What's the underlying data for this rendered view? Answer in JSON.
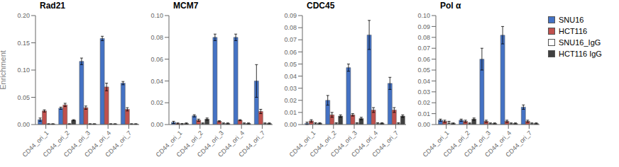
{
  "chart_data": [
    {
      "type": "bar",
      "title": "Rad21",
      "ylabel": "Enrichment",
      "grid": false,
      "categories": [
        "CD44_ori_1",
        "CD44_ori_2",
        "CD44_ori_3",
        "CD44_ori_4",
        "CD44_ori_7"
      ],
      "ylim": [
        0,
        0.2
      ],
      "yticks": [
        {
          "value": 0,
          "label": "0.00"
        },
        0.05,
        {
          "value": 0.1,
          "label": "0.10"
        },
        0.15,
        {
          "value": 0.2,
          "label": "0.20"
        }
      ],
      "series": [
        {
          "name": "SNU16",
          "color": "#4472C4",
          "values": [
            0.009,
            0.03,
            0.116,
            0.158,
            0.076
          ],
          "errors": [
            0.003,
            0.002,
            0.006,
            0.004,
            0.003
          ]
        },
        {
          "name": "HCT116",
          "color": "#C0504D",
          "values": [
            0.025,
            0.036,
            0.031,
            0.069,
            0.028
          ],
          "errors": [
            0.002,
            0.003,
            0.003,
            0.007,
            0.003
          ]
        },
        {
          "name": "SNU16_IgG",
          "color": "#FFFFFF",
          "values": [
            0.001,
            0.001,
            0.001,
            0.001,
            0.001
          ],
          "errors": [
            0.0005,
            0.0005,
            0.0005,
            0.0005,
            0.0005
          ]
        },
        {
          "name": "HCT116 IgG",
          "color": "#404040",
          "values": [
            0.001,
            0.008,
            0.001,
            0.001,
            0.001
          ],
          "errors": [
            0.0005,
            0.001,
            0.0005,
            0.0005,
            0.0005
          ]
        }
      ]
    },
    {
      "type": "bar",
      "title": "MCM7",
      "grid": false,
      "categories": [
        "CD44_ori_1",
        "CD44_ori_2",
        "CD44_ori_3",
        "CD44_ori_4",
        "CD44_ori_7"
      ],
      "ylim": [
        0,
        0.1
      ],
      "yticks": [
        {
          "value": 0,
          "label": "0.00"
        },
        0.02,
        0.04,
        0.06,
        0.08,
        {
          "value": 0.1,
          "label": "0.10"
        }
      ],
      "series": [
        {
          "name": "SNU16",
          "color": "#4472C4",
          "values": [
            0.002,
            0.008,
            0.08,
            0.08,
            0.04
          ],
          "errors": [
            0.001,
            0.001,
            0.003,
            0.003,
            0.015
          ]
        },
        {
          "name": "HCT116",
          "color": "#C0504D",
          "values": [
            0.001,
            0.004,
            0.003,
            0.004,
            0.012
          ],
          "errors": [
            0.0005,
            0.001,
            0.0005,
            0.0005,
            0.002
          ]
        },
        {
          "name": "SNU16_IgG",
          "color": "#FFFFFF",
          "values": [
            0.0005,
            0.001,
            0.001,
            0.001,
            0.001
          ],
          "errors": [
            0.0005,
            0.0005,
            0.0005,
            0.0005,
            0.0005
          ]
        },
        {
          "name": "HCT116 IgG",
          "color": "#404040",
          "values": [
            0.001,
            0.005,
            0.001,
            0.001,
            0.001
          ],
          "errors": [
            0.0005,
            0.001,
            0.0005,
            0.0005,
            0.0005
          ]
        }
      ]
    },
    {
      "type": "bar",
      "title": "CDC45",
      "grid": false,
      "categories": [
        "CD44_ori_1",
        "CD44_ori_2",
        "CD44_ori_3",
        "CD44_ori_4",
        "CD44_ori_7"
      ],
      "ylim": [
        0,
        0.09
      ],
      "yticks": [
        {
          "value": 0,
          "label": "0.00"
        },
        0.01,
        0.02,
        0.03,
        0.04,
        0.05,
        0.06,
        0.07,
        0.08,
        0.09
      ],
      "series": [
        {
          "name": "SNU16",
          "color": "#4472C4",
          "values": [
            0.001,
            0.02,
            0.047,
            0.074,
            0.034
          ],
          "errors": [
            0.001,
            0.004,
            0.003,
            0.012,
            0.005
          ]
        },
        {
          "name": "HCT116",
          "color": "#C0504D",
          "values": [
            0.003,
            0.008,
            0.008,
            0.012,
            0.012
          ],
          "errors": [
            0.001,
            0.002,
            0.001,
            0.002,
            0.002
          ]
        },
        {
          "name": "SNU16_IgG",
          "color": "#FFFFFF",
          "values": [
            0.001,
            0.001,
            0.001,
            0.001,
            0.001
          ],
          "errors": [
            0.0005,
            0.0005,
            0.0005,
            0.0005,
            0.0005
          ]
        },
        {
          "name": "HCT116 IgG",
          "color": "#404040",
          "values": [
            0.001,
            0.007,
            0.005,
            0.001,
            0.007
          ],
          "errors": [
            0.0005,
            0.001,
            0.001,
            0.0005,
            0.001
          ]
        }
      ]
    },
    {
      "type": "bar",
      "title": "Pol α",
      "grid": false,
      "legend": "right",
      "categories": [
        "CD44_ori_1",
        "CD44_ori_2",
        "CD44_ori_3",
        "CD44_ori_4",
        "CD44_ori_7"
      ],
      "ylim": [
        0,
        0.1
      ],
      "yticks": [
        {
          "value": 0,
          "label": "0.00"
        },
        0.01,
        0.02,
        0.03,
        0.04,
        0.05,
        0.06,
        0.07,
        0.08,
        0.09,
        {
          "value": 0.1,
          "label": "0.10"
        }
      ],
      "series": [
        {
          "name": "SNU16",
          "color": "#4472C4",
          "values": [
            0.004,
            0.004,
            0.06,
            0.082,
            0.016
          ],
          "errors": [
            0.001,
            0.001,
            0.01,
            0.008,
            0.002
          ]
        },
        {
          "name": "HCT116",
          "color": "#C0504D",
          "values": [
            0.003,
            0.003,
            0.003,
            0.003,
            0.003
          ],
          "errors": [
            0.001,
            0.001,
            0.001,
            0.001,
            0.001
          ]
        },
        {
          "name": "SNU16_IgG",
          "color": "#FFFFFF",
          "values": [
            0.002,
            0.001,
            0.001,
            0.001,
            0.001
          ],
          "errors": [
            0.001,
            0.0005,
            0.0005,
            0.0005,
            0.0005
          ]
        },
        {
          "name": "HCT116 IgG",
          "color": "#404040",
          "values": [
            0.001,
            0.005,
            0.001,
            0.001,
            0.001
          ],
          "errors": [
            0.0005,
            0.001,
            0.0005,
            0.0005,
            0.0005
          ]
        }
      ]
    }
  ]
}
